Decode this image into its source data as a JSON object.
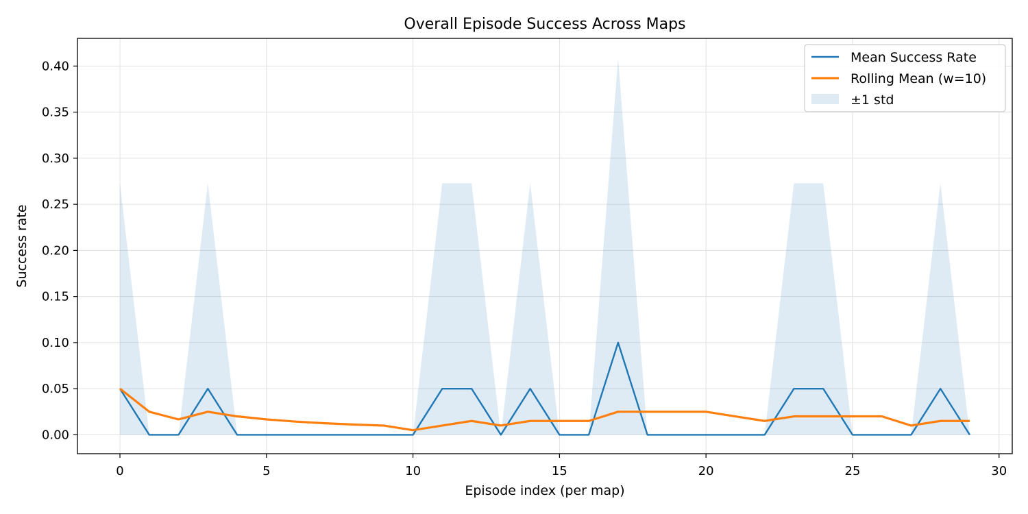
{
  "chart_data": {
    "type": "line",
    "title": "Overall Episode Success Across Maps",
    "xlabel": "Episode index (per map)",
    "ylabel": "Success rate",
    "xlim": [
      -1.45,
      30.45
    ],
    "ylim": [
      -0.0205,
      0.43
    ],
    "xticks": [
      0,
      5,
      10,
      15,
      20,
      25,
      30
    ],
    "xtick_labels": [
      "0",
      "5",
      "10",
      "15",
      "20",
      "25",
      "30"
    ],
    "yticks": [
      0.0,
      0.05,
      0.1,
      0.15,
      0.2,
      0.25,
      0.3,
      0.35,
      0.4
    ],
    "ytick_labels": [
      "0.00",
      "0.05",
      "0.10",
      "0.15",
      "0.20",
      "0.25",
      "0.30",
      "0.35",
      "0.40"
    ],
    "grid": true,
    "legend_position": "top-right",
    "x": [
      0,
      1,
      2,
      3,
      4,
      5,
      6,
      7,
      8,
      9,
      10,
      11,
      12,
      13,
      14,
      15,
      16,
      17,
      18,
      19,
      20,
      21,
      22,
      23,
      24,
      25,
      26,
      27,
      28,
      29
    ],
    "series": [
      {
        "name": "Mean Success Rate",
        "color": "#1f77b4",
        "style": "line",
        "values": [
          0.05,
          0,
          0,
          0.05,
          0,
          0,
          0,
          0,
          0,
          0,
          0,
          0.05,
          0.05,
          0,
          0.05,
          0,
          0,
          0.1,
          0,
          0,
          0,
          0,
          0,
          0.05,
          0.05,
          0,
          0,
          0,
          0.05,
          0
        ]
      },
      {
        "name": "Rolling Mean (w=10)",
        "color": "#ff7f0e",
        "style": "line",
        "values": [
          0.05,
          0.025,
          0.0167,
          0.025,
          0.02,
          0.0167,
          0.0143,
          0.0125,
          0.0111,
          0.01,
          0.005,
          0.01,
          0.015,
          0.01,
          0.015,
          0.015,
          0.015,
          0.025,
          0.025,
          0.025,
          0.025,
          0.02,
          0.015,
          0.02,
          0.02,
          0.02,
          0.02,
          0.01,
          0.015,
          0.015
        ]
      },
      {
        "name": "±1 std",
        "color": "#1f77b4",
        "opacity": 0.15,
        "style": "band",
        "lower": [
          0,
          0,
          0,
          0,
          0,
          0,
          0,
          0,
          0,
          0,
          0,
          0,
          0,
          0,
          0,
          0,
          0,
          0,
          0,
          0,
          0,
          0,
          0,
          0,
          0,
          0,
          0,
          0,
          0,
          0
        ],
        "upper": [
          0.2729,
          0,
          0,
          0.2729,
          0,
          0,
          0,
          0,
          0,
          0,
          0,
          0.2729,
          0.2729,
          0,
          0.2729,
          0,
          0,
          0.4081,
          0,
          0,
          0,
          0,
          0,
          0.2729,
          0.2729,
          0,
          0,
          0,
          0.2729,
          0
        ]
      }
    ]
  }
}
